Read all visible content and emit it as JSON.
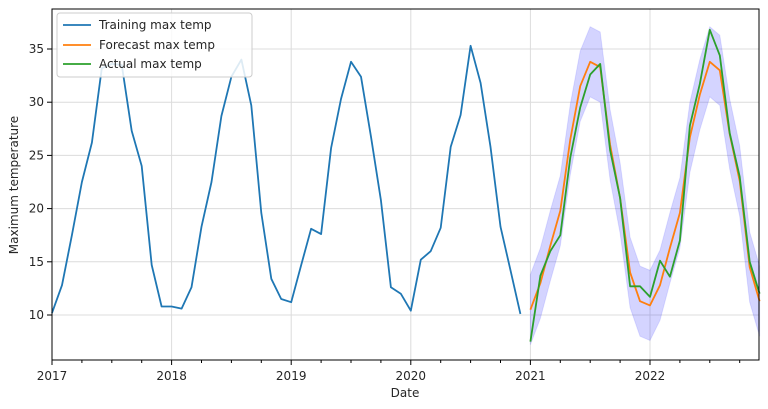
{
  "chart_data": {
    "type": "line",
    "title": "",
    "xlabel": "Date",
    "ylabel": "Maximum temperature",
    "xlim": [
      "2017-01",
      "2022-12"
    ],
    "ylim": [
      5.8,
      38.8
    ],
    "grid": true,
    "legend_position": "upper left",
    "x_ticks": [
      "2017",
      "2018",
      "2019",
      "2020",
      "2021",
      "2022"
    ],
    "y_ticks": [
      10,
      15,
      20,
      25,
      30,
      35
    ],
    "series": [
      {
        "name": "Training max temp",
        "color": "#1f77b4",
        "start": "2017-01",
        "values": [
          10.2,
          12.8,
          17.5,
          22.5,
          26.2,
          33.2,
          33.6,
          33.5,
          27.3,
          24.0,
          14.7,
          10.8,
          10.8,
          10.6,
          12.6,
          18.3,
          22.5,
          28.7,
          32.4,
          34.0,
          29.7,
          19.6,
          13.4,
          11.5,
          11.2,
          14.7,
          18.1,
          17.6,
          25.7,
          30.3,
          33.8,
          32.4,
          26.8,
          20.8,
          12.6,
          12.0,
          10.4,
          15.2,
          16.0,
          18.2,
          25.8,
          28.8,
          35.3,
          31.8,
          25.8,
          18.3,
          14.2,
          10.1
        ]
      },
      {
        "name": "Forecast max temp",
        "color": "#ff7f0e",
        "start": "2021-01",
        "values": [
          10.5,
          13.0,
          16.5,
          19.8,
          26.5,
          31.5,
          33.8,
          33.3,
          26.0,
          21.0,
          14.0,
          11.3,
          10.9,
          12.8,
          16.3,
          19.6,
          26.7,
          30.7,
          33.8,
          33.0,
          27.0,
          22.6,
          14.5,
          11.3
        ]
      },
      {
        "name": "Actual max temp",
        "color": "#2ca02c",
        "start": "2021-01",
        "values": [
          7.5,
          13.7,
          16.0,
          17.5,
          24.8,
          29.5,
          32.6,
          33.6,
          25.5,
          21.0,
          12.7,
          12.7,
          11.7,
          15.1,
          13.6,
          17.0,
          27.8,
          31.7,
          36.8,
          34.4,
          27.1,
          23.0,
          15.0,
          12.0
        ]
      }
    ],
    "confidence_band": {
      "name": "Forecast interval",
      "color": "#0000ff",
      "opacity": 0.17,
      "start": "2021-01",
      "lower": [
        7.2,
        9.7,
        13.2,
        16.5,
        23.2,
        28.2,
        30.5,
        30.0,
        22.7,
        17.7,
        10.7,
        8.0,
        7.6,
        9.5,
        13.0,
        16.3,
        23.4,
        27.4,
        30.5,
        29.7,
        23.7,
        19.3,
        11.2,
        8.0
      ],
      "upper": [
        13.8,
        16.3,
        19.8,
        23.1,
        29.8,
        34.8,
        37.1,
        36.6,
        29.3,
        24.3,
        17.3,
        14.6,
        14.2,
        16.1,
        19.6,
        22.9,
        30.0,
        34.0,
        37.1,
        36.3,
        30.3,
        25.9,
        17.8,
        14.6
      ]
    }
  }
}
